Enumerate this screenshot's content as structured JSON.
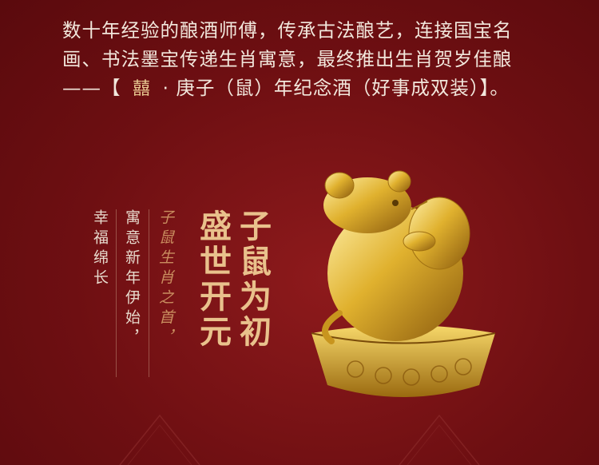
{
  "paragraph": {
    "before": "数十年经验的酿酒师傅，传承古法酿艺，连接国宝名画、书法墨宝传递生肖寓意，最终推出生肖贺岁佳酿——【 ",
    "logo_text": "囍",
    "after": " · 庚子（鼠）年纪念酒（好事成双装）】。"
  },
  "poem": {
    "col1": "幸福绵长",
    "col2": "寓意新年伊始，",
    "col3": "子鼠生肖之首，",
    "col4": "盛世开元",
    "col5": "子鼠为初"
  },
  "colors": {
    "background": "#6e0f12",
    "gold": "#e9c18c",
    "text": "#f2e7dc"
  }
}
